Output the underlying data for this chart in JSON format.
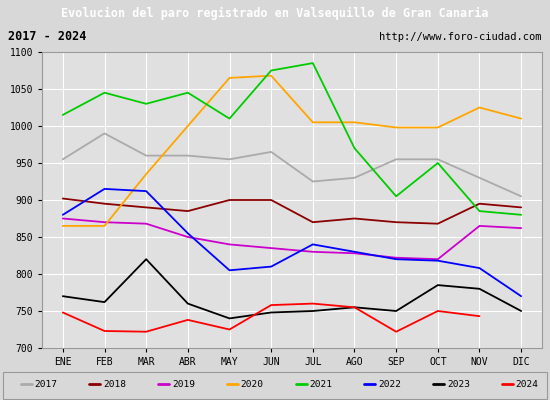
{
  "title": "Evolucion del paro registrado en Valsequillo de Gran Canaria",
  "subtitle_left": "2017 - 2024",
  "subtitle_right": "http://www.foro-ciudad.com",
  "months": [
    "ENE",
    "FEB",
    "MAR",
    "ABR",
    "MAY",
    "JUN",
    "JUL",
    "AGO",
    "SEP",
    "OCT",
    "NOV",
    "DIC"
  ],
  "ylim": [
    700,
    1100
  ],
  "yticks": [
    700,
    750,
    800,
    850,
    900,
    950,
    1000,
    1050,
    1100
  ],
  "series": {
    "2017": [
      955,
      990,
      960,
      960,
      955,
      965,
      925,
      930,
      955,
      955,
      930,
      905
    ],
    "2018": [
      902,
      895,
      890,
      885,
      900,
      900,
      870,
      875,
      870,
      868,
      895,
      890
    ],
    "2019": [
      875,
      870,
      868,
      850,
      840,
      835,
      830,
      828,
      822,
      820,
      865,
      862
    ],
    "2020": [
      865,
      865,
      935,
      1000,
      1065,
      1068,
      1005,
      1005,
      998,
      998,
      1025,
      1010
    ],
    "2021": [
      1015,
      1045,
      1030,
      1045,
      1010,
      1075,
      1085,
      970,
      905,
      950,
      885,
      880
    ],
    "2022": [
      880,
      915,
      912,
      855,
      805,
      810,
      840,
      830,
      820,
      818,
      808,
      770
    ],
    "2023": [
      770,
      762,
      820,
      760,
      740,
      748,
      750,
      755,
      750,
      785,
      780,
      750
    ],
    "2024": [
      748,
      723,
      722,
      738,
      725,
      758,
      760,
      755,
      722,
      750,
      743,
      null
    ]
  },
  "colors": {
    "2017": "#aaaaaa",
    "2018": "#8b0000",
    "2019": "#cc00cc",
    "2020": "#ffa500",
    "2021": "#00cc00",
    "2022": "#0000ff",
    "2023": "#000000",
    "2024": "#ff0000"
  },
  "background_color": "#d8d8d8",
  "plot_bg_color": "#e0e0e0",
  "title_bg_color": "#4472c4",
  "title_text_color": "#ffffff",
  "grid_color": "#ffffff",
  "border_color": "#999999",
  "legend_years": [
    "2017",
    "2018",
    "2019",
    "2020",
    "2021",
    "2022",
    "2023",
    "2024"
  ]
}
